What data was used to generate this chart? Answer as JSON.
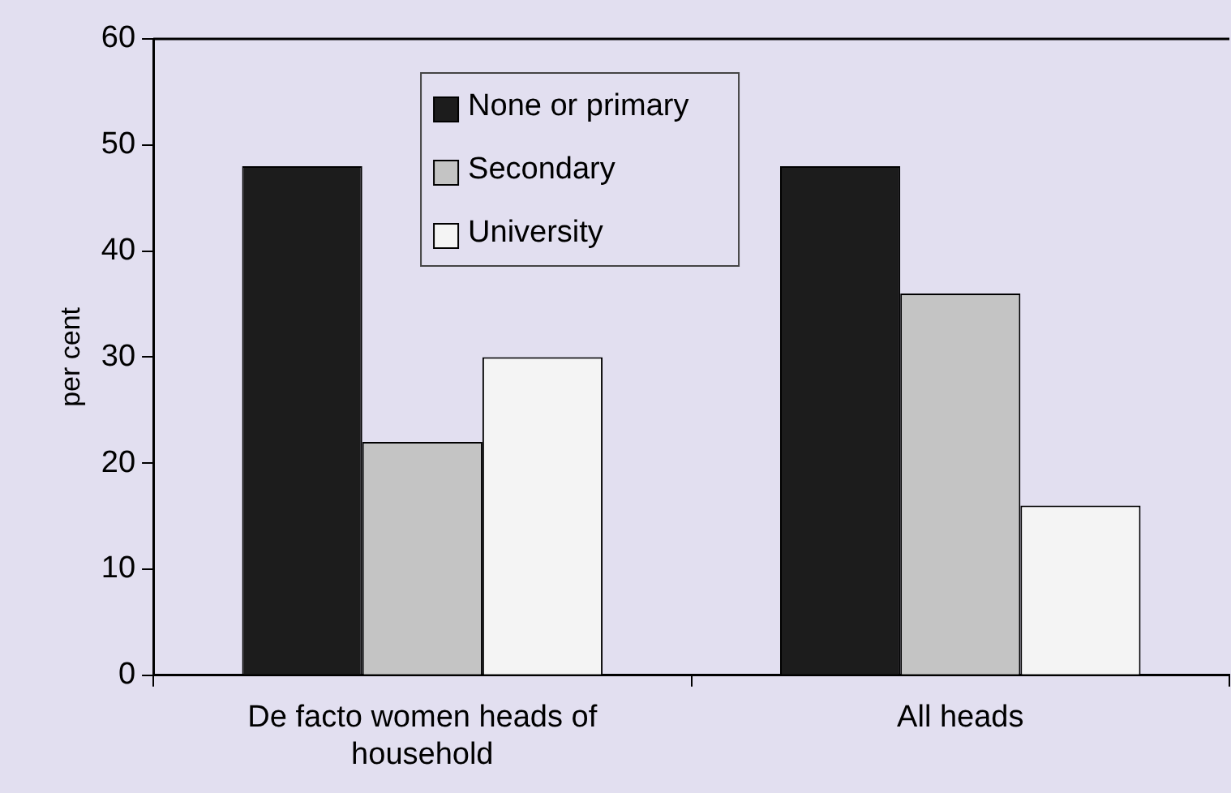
{
  "chart_data": {
    "type": "bar",
    "ylabel": "per cent",
    "categories": [
      "De facto women heads of household",
      "All heads"
    ],
    "series": [
      {
        "name": "None or primary",
        "color": "#1c1c1c",
        "values": [
          48,
          48
        ]
      },
      {
        "name": "Secondary",
        "color": "#c4c4c4",
        "values": [
          22,
          36
        ]
      },
      {
        "name": "University",
        "color": "#f4f4f4",
        "values": [
          30,
          16
        ]
      }
    ],
    "ylim": [
      0,
      60
    ],
    "yticks": [
      0,
      10,
      20,
      30,
      40,
      50,
      60
    ],
    "grid": false,
    "legend": "top left"
  }
}
